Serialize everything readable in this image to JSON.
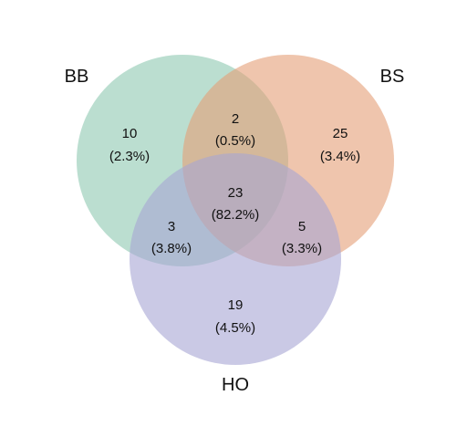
{
  "colors": {
    "BB": "#8dc8b0",
    "BS": "#e49e77",
    "HO": "#a6a5d3",
    "text": "#111111",
    "background": "#ffffff"
  },
  "sets": {
    "BB": {
      "label": "BB"
    },
    "BS": {
      "label": "BS"
    },
    "HO": {
      "label": "HO"
    }
  },
  "regions": {
    "bb_only": {
      "count": "10",
      "percent": "(2.3%)"
    },
    "bb_bs": {
      "count": "2",
      "percent": "(0.5%)"
    },
    "bs_only": {
      "count": "25",
      "percent": "(3.4%)"
    },
    "bb_bs_ho": {
      "count": "23",
      "percent": "(82.2%)"
    },
    "bb_ho": {
      "count": "3",
      "percent": "(3.8%)"
    },
    "bs_ho": {
      "count": "5",
      "percent": "(3.3%)"
    },
    "ho_only": {
      "count": "19",
      "percent": "(4.5%)"
    }
  }
}
